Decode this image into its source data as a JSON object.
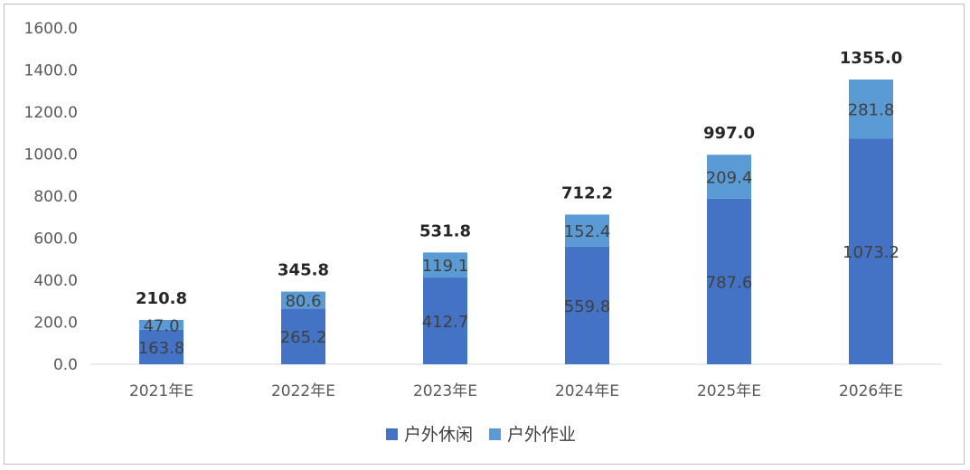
{
  "chart_data": {
    "type": "bar",
    "stacked": true,
    "categories": [
      "2021年E",
      "2022年E",
      "2023年E",
      "2024年E",
      "2025年E",
      "2026年E"
    ],
    "series": [
      {
        "name": "户外休闲",
        "color": "#4472c4",
        "values": [
          163.8,
          265.2,
          412.7,
          559.8,
          787.6,
          1073.2
        ]
      },
      {
        "name": "户外作业",
        "color": "#5b9bd5",
        "values": [
          47.0,
          80.6,
          119.1,
          152.4,
          209.4,
          281.8
        ]
      }
    ],
    "totals": [
      210.8,
      345.8,
      531.8,
      712.2,
      997.0,
      1355.0
    ],
    "ylim": [
      0,
      1600
    ],
    "yticks": [
      "0.0",
      "200.0",
      "400.0",
      "600.0",
      "800.0",
      "1000.0",
      "1200.0",
      "1400.0",
      "1600.0"
    ],
    "title": "",
    "xlabel": "",
    "ylabel": "",
    "grid": false,
    "legend_position": "bottom"
  }
}
